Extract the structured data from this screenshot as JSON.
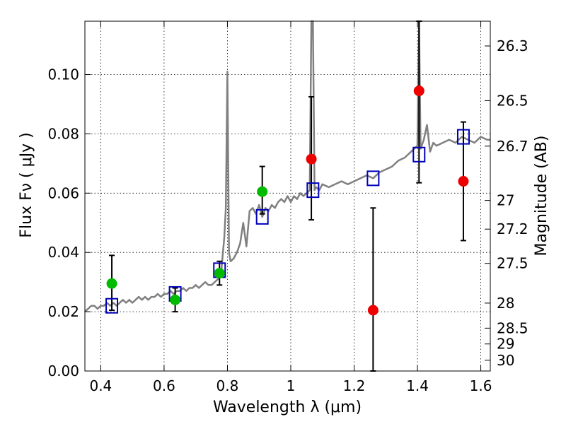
{
  "chart_data": {
    "type": "scatter",
    "xlabel": "Wavelength  λ (μm)",
    "ylabel": "Flux  Fν ( μJy )",
    "ylabel_right": "Magnitude (AB)",
    "xlim": [
      0.35,
      1.63
    ],
    "ylim": [
      0.0,
      0.118
    ],
    "x_ticks": [
      0.4,
      0.6,
      0.8,
      1.0,
      1.2,
      1.4,
      1.6
    ],
    "x_tick_labels": [
      "0.4",
      "0.6",
      "0.8",
      "1",
      "1.2",
      "1.4",
      "1.6"
    ],
    "y_ticks": [
      0.0,
      0.02,
      0.04,
      0.06,
      0.08,
      0.1
    ],
    "y_tick_labels": [
      "0.00",
      "0.02",
      "0.04",
      "0.06",
      "0.08",
      "0.10"
    ],
    "mag_ticks": [
      26.3,
      26.5,
      26.7,
      27.0,
      27.2,
      27.5,
      28.0,
      28.5,
      29.0,
      30.0
    ],
    "mag_tick_labels": [
      "26.3",
      "26.5",
      "26.7",
      "27",
      "27.2",
      "27.5",
      "28",
      "28.5",
      "29",
      "30"
    ],
    "grid": true,
    "series": [
      {
        "kind": "line",
        "color": "#808080",
        "x": [
          0.35,
          0.36,
          0.37,
          0.38,
          0.39,
          0.4,
          0.41,
          0.42,
          0.43,
          0.44,
          0.45,
          0.46,
          0.47,
          0.48,
          0.49,
          0.5,
          0.51,
          0.52,
          0.53,
          0.54,
          0.55,
          0.56,
          0.57,
          0.58,
          0.59,
          0.6,
          0.61,
          0.62,
          0.63,
          0.64,
          0.65,
          0.66,
          0.67,
          0.68,
          0.69,
          0.7,
          0.71,
          0.72,
          0.73,
          0.74,
          0.75,
          0.76,
          0.77,
          0.78,
          0.79,
          0.795,
          0.8,
          0.805,
          0.81,
          0.82,
          0.83,
          0.84,
          0.85,
          0.86,
          0.87,
          0.88,
          0.89,
          0.9,
          0.91,
          0.92,
          0.93,
          0.94,
          0.95,
          0.96,
          0.97,
          0.98,
          0.99,
          1.0,
          1.01,
          1.02,
          1.03,
          1.04,
          1.05,
          1.06,
          1.065,
          1.07,
          1.075,
          1.08,
          1.09,
          1.1,
          1.12,
          1.14,
          1.16,
          1.18,
          1.2,
          1.22,
          1.24,
          1.26,
          1.28,
          1.3,
          1.32,
          1.34,
          1.36,
          1.38,
          1.4,
          1.405,
          1.41,
          1.42,
          1.43,
          1.44,
          1.45,
          1.46,
          1.48,
          1.5,
          1.52,
          1.54,
          1.56,
          1.58,
          1.6,
          1.62,
          1.63
        ],
        "y": [
          0.02,
          0.021,
          0.022,
          0.022,
          0.021,
          0.022,
          0.022,
          0.023,
          0.022,
          0.023,
          0.022,
          0.023,
          0.024,
          0.023,
          0.024,
          0.023,
          0.024,
          0.025,
          0.024,
          0.025,
          0.024,
          0.025,
          0.025,
          0.026,
          0.025,
          0.026,
          0.026,
          0.027,
          0.026,
          0.027,
          0.027,
          0.028,
          0.027,
          0.028,
          0.028,
          0.029,
          0.028,
          0.029,
          0.03,
          0.029,
          0.029,
          0.03,
          0.031,
          0.033,
          0.045,
          0.055,
          0.101,
          0.04,
          0.037,
          0.038,
          0.04,
          0.043,
          0.05,
          0.042,
          0.054,
          0.055,
          0.053,
          0.056,
          0.052,
          0.055,
          0.054,
          0.056,
          0.055,
          0.057,
          0.058,
          0.057,
          0.059,
          0.057,
          0.059,
          0.058,
          0.06,
          0.059,
          0.06,
          0.061,
          0.118,
          0.118,
          0.061,
          0.062,
          0.061,
          0.063,
          0.062,
          0.063,
          0.064,
          0.063,
          0.064,
          0.065,
          0.066,
          0.065,
          0.067,
          0.068,
          0.069,
          0.071,
          0.072,
          0.074,
          0.076,
          0.118,
          0.075,
          0.078,
          0.083,
          0.074,
          0.077,
          0.076,
          0.077,
          0.078,
          0.077,
          0.079,
          0.078,
          0.077,
          0.079,
          0.078,
          0.078
        ]
      },
      {
        "kind": "squares",
        "color": "#0000bb",
        "x": [
          0.435,
          0.635,
          0.775,
          0.91,
          1.07,
          1.26,
          1.405,
          1.545
        ],
        "y": [
          0.022,
          0.026,
          0.034,
          0.052,
          0.061,
          0.065,
          0.073,
          0.079
        ]
      },
      {
        "kind": "points",
        "color": "#00bb00",
        "x": [
          0.435,
          0.635,
          0.775,
          0.91
        ],
        "y": [
          0.0295,
          0.024,
          0.033,
          0.0605
        ],
        "yerr_low": [
          0.0205,
          0.02,
          0.029,
          0.053
        ],
        "yerr_high": [
          0.039,
          0.028,
          0.037,
          0.069
        ]
      },
      {
        "kind": "points",
        "color": "#ee0000",
        "x": [
          1.065,
          1.26,
          1.405,
          1.545
        ],
        "y": [
          0.0715,
          0.0205,
          0.0945,
          0.064
        ],
        "yerr_low": [
          0.051,
          0.0,
          0.0635,
          0.044
        ],
        "yerr_high": [
          0.0925,
          0.055,
          0.118,
          0.084
        ]
      }
    ]
  }
}
